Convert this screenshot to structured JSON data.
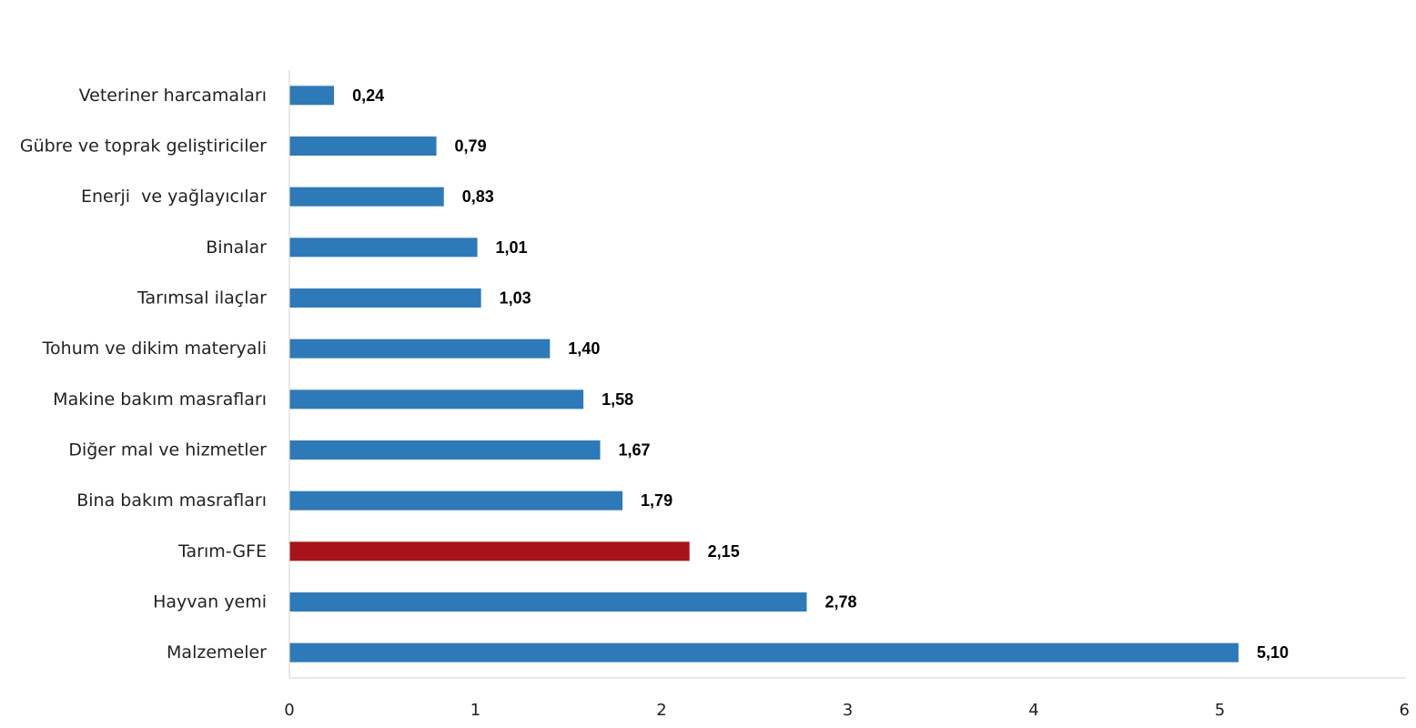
{
  "chart_data": {
    "type": "bar",
    "orientation": "horizontal",
    "categories": [
      "Veteriner harcamaları",
      "Gübre ve toprak geliştiriciler",
      "Enerji  ve yağlayıcılar",
      "Binalar",
      "Tarımsal ilaçlar",
      "Tohum ve dikim materyali",
      "Makine bakım masrafları",
      "Diğer mal ve hizmetler",
      "Bina bakım masrafları",
      "Tarım-GFE",
      "Hayvan yemi",
      "Malzemeler"
    ],
    "values": [
      0.24,
      0.79,
      0.83,
      1.01,
      1.03,
      1.4,
      1.58,
      1.67,
      1.79,
      2.15,
      2.78,
      5.1
    ],
    "value_labels": [
      "0,24",
      "0,79",
      "0,83",
      "1,01",
      "1,03",
      "1,40",
      "1,58",
      "1,67",
      "1,79",
      "2,15",
      "2,78",
      "5,10"
    ],
    "colors": [
      "#2e7ab8",
      "#2e7ab8",
      "#2e7ab8",
      "#2e7ab8",
      "#2e7ab8",
      "#2e7ab8",
      "#2e7ab8",
      "#2e7ab8",
      "#2e7ab8",
      "#a8121a",
      "#2e7ab8",
      "#2e7ab8"
    ],
    "xlim": [
      0,
      6
    ],
    "xticks": [
      "0",
      "1",
      "2",
      "3",
      "4",
      "5",
      "6"
    ],
    "title": "",
    "xlabel": "",
    "ylabel": "",
    "grid": false,
    "legend": "none"
  }
}
